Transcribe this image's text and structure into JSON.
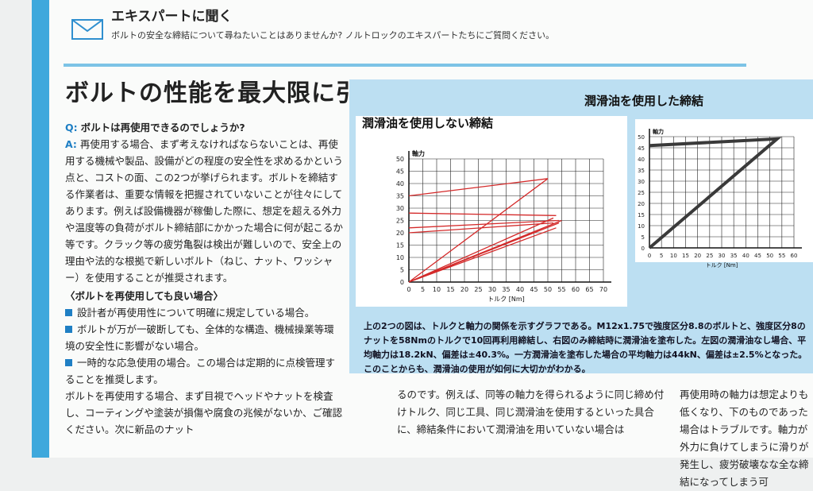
{
  "header": {
    "title": "エキスパートに聞く",
    "subtitle": "ボルトの安全な締結について尋ねたいことはありませんか? ノルトロックのエキスパートたちにご質問ください。"
  },
  "article": {
    "title": "ボルトの性能を最大限に引き出すには",
    "question_label": "Q:",
    "question": "ボルトは再使用できるのでしょうか?",
    "answer_label": "A:",
    "answer": "再使用する場合、まず考えなければならないことは、再使用する機械や製品、設備がどの程度の安全性を求めるかという点と、コストの面、この2つが挙げられます。ボルトを締結する作業者は、重要な情報を把握されていないことが往々にしてあります。例えば設備機器が稼働した際に、想定を超える外力や温度等の負荷がボルト締結部にかかった場合に何が起こるか等です。クラック等の疲労亀裂は検出が難しいので、安全上の理由や法的な根拠で新しいボルト（ねじ、ナット、ワッシャー）を使用することが推奨されます。",
    "subheading": "〈ボルトを再使用しても良い場合〉",
    "bullets": [
      "設計者が再使用性について明確に規定している場合。",
      "ボルトが万が一破断しても、全体的な構造、機械操業等環境の安全性に影響がない場合。",
      "一時的な応急使用の場合。この場合は定期的に点検管理することを推奨します。"
    ],
    "paragraph": "ボルトを再使用する場合、まず目視でヘッドやナットを検査し、コーティングや塗装が損傷や腐食の兆候がないか、ご確認ください。次に新品のナット"
  },
  "figures": {
    "charts": [
      {
        "type": "line",
        "title": "潤滑油を使用しない締結",
        "y_label": "軸力",
        "x_label": "トルク [Nm]",
        "xlim": [
          0,
          70
        ],
        "ylim": [
          0,
          50
        ],
        "xticks": [
          0,
          5,
          10,
          15,
          20,
          25,
          30,
          35,
          40,
          45,
          50,
          55,
          60,
          65,
          70
        ],
        "yticks": [
          0,
          5,
          10,
          15,
          20,
          25,
          30,
          35,
          40,
          45,
          50
        ],
        "grid": true,
        "series": [
          {
            "color": "#d42a2a",
            "x": [
              0,
              50,
              null,
              0,
              52,
              null,
              0,
              54,
              null,
              0,
              53,
              null,
              0,
              55,
              null,
              0,
              50,
              null,
              0,
              53,
              null,
              0,
              54,
              null,
              0,
              52
            ],
            "y": [
              0,
              42,
              null,
              0,
              26,
              null,
              0,
              24,
              null,
              0,
              22,
              null,
              0,
              25,
              null,
              35,
              42,
              null,
              28,
              27,
              null,
              22,
              25,
              null,
              20,
              24
            ]
          }
        ]
      },
      {
        "type": "line",
        "title": "潤滑油を使用した締結",
        "y_label": "軸力",
        "x_label": "トルク [Nm]",
        "xlim": [
          0,
          60
        ],
        "ylim": [
          0,
          50
        ],
        "xticks": [
          0,
          5,
          10,
          15,
          20,
          25,
          30,
          35,
          40,
          45,
          50,
          55,
          60
        ],
        "yticks": [
          0,
          5,
          10,
          15,
          20,
          25,
          30,
          35,
          40,
          45,
          50
        ],
        "grid": true,
        "series": [
          {
            "color": "#3a3a3a",
            "x": [
              0,
              53,
              0
            ],
            "y": [
              0,
              49,
              46
            ]
          }
        ]
      }
    ],
    "caption": "上の2つの図は、トルクと軸力の関係を示すグラフである。M12x1.75で強度区分8.8のボルトと、強度区分8のナットを58Nmのトルクで10回再利用締結し、右図のみ締結時に潤滑油を塗布した。左図の潤滑油なし場合、平均軸力は18.2kN、偏差は±40.3%。一方潤滑油を塗布した場合の平均軸力は44kN、偏差は±2.5%となった。このことからも、潤滑油の使用が如何に大切かがわかる。"
  },
  "lower_text": [
    "るのです。例えば、同等の軸力を得られるように同じ締め付けトルク、同じ工具、同じ潤滑油を使用するといった具合に、締結条件において潤滑油を用いていない場合は",
    "再使用時の軸力は想定よりも低くなり、下のものであった場合はトラブルです。軸力が外力に負けてしまうに滑りが発生し、疲労破壊なな全な締結になってしまう可"
  ]
}
